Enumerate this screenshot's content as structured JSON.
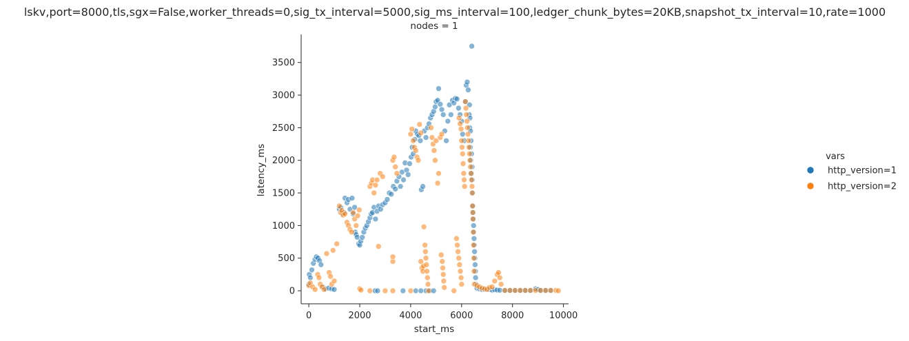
{
  "chart_data": {
    "type": "scatter",
    "title": "lskv,port=8000,tls,sgx=False,worker_threads=0,sig_tx_interval=5000,sig_ms_interval=100,ledger_chunk_bytes=20KB,snapshot_tx_interval=10,rate=1000",
    "subtitle": "nodes = 1",
    "xlabel": "start_ms",
    "ylabel": "latency_ms",
    "xlim": [
      -300,
      10200
    ],
    "ylim": [
      -200,
      3930
    ],
    "xticks": [
      0,
      2000,
      4000,
      6000,
      8000,
      10000
    ],
    "yticks": [
      0,
      500,
      1000,
      1500,
      2000,
      2500,
      3000,
      3500
    ],
    "grid": false,
    "legend": {
      "title": "vars",
      "placement": "right"
    },
    "series": [
      {
        "name": "http_version=1",
        "color": "#1f77b4",
        "points": [
          [
            0,
            100
          ],
          [
            20,
            250
          ],
          [
            60,
            200
          ],
          [
            120,
            320
          ],
          [
            180,
            420
          ],
          [
            240,
            480
          ],
          [
            300,
            520
          ],
          [
            360,
            500
          ],
          [
            420,
            460
          ],
          [
            480,
            400
          ],
          [
            550,
            60
          ],
          [
            650,
            30
          ],
          [
            780,
            40
          ],
          [
            900,
            30
          ],
          [
            1000,
            20
          ],
          [
            1200,
            1250
          ],
          [
            1260,
            1280
          ],
          [
            1320,
            1180
          ],
          [
            1380,
            1200
          ],
          [
            1420,
            1420
          ],
          [
            1500,
            1350
          ],
          [
            1560,
            1400
          ],
          [
            1620,
            1250
          ],
          [
            1700,
            1420
          ],
          [
            1740,
            1180
          ],
          [
            1800,
            1280
          ],
          [
            1820,
            900
          ],
          [
            1860,
            860
          ],
          [
            1900,
            820
          ],
          [
            1960,
            720
          ],
          [
            2000,
            700
          ],
          [
            2040,
            760
          ],
          [
            2100,
            820
          ],
          [
            2160,
            900
          ],
          [
            2220,
            960
          ],
          [
            2280,
            1000
          ],
          [
            2340,
            1060
          ],
          [
            2400,
            1120
          ],
          [
            2450,
            1180
          ],
          [
            2500,
            1200
          ],
          [
            2560,
            1280
          ],
          [
            2620,
            1100
          ],
          [
            2680,
            1220
          ],
          [
            2740,
            1300
          ],
          [
            2820,
            1250
          ],
          [
            2900,
            1320
          ],
          [
            3000,
            1350
          ],
          [
            3080,
            1400
          ],
          [
            3160,
            1500
          ],
          [
            3240,
            1480
          ],
          [
            3320,
            1600
          ],
          [
            3400,
            1560
          ],
          [
            3460,
            1680
          ],
          [
            3540,
            1750
          ],
          [
            3600,
            1600
          ],
          [
            3660,
            1820
          ],
          [
            3720,
            1700
          ],
          [
            3780,
            1960
          ],
          [
            3840,
            1850
          ],
          [
            3900,
            1780
          ],
          [
            3960,
            1950
          ],
          [
            4020,
            2050
          ],
          [
            4060,
            2200
          ],
          [
            4100,
            2100
          ],
          [
            4160,
            2320
          ],
          [
            4200,
            2450
          ],
          [
            4260,
            2400
          ],
          [
            4320,
            2380
          ],
          [
            4380,
            2300
          ],
          [
            4420,
            1550
          ],
          [
            4480,
            1600
          ],
          [
            4540,
            2450
          ],
          [
            4600,
            2350
          ],
          [
            4660,
            2500
          ],
          [
            4720,
            2560
          ],
          [
            4780,
            2650
          ],
          [
            4840,
            2700
          ],
          [
            4900,
            2750
          ],
          [
            4960,
            2820
          ],
          [
            5000,
            2900
          ],
          [
            5060,
            2920
          ],
          [
            5100,
            3100
          ],
          [
            5160,
            2860
          ],
          [
            5220,
            2780
          ],
          [
            5280,
            2700
          ],
          [
            5340,
            2450
          ],
          [
            5400,
            2300
          ],
          [
            5460,
            2600
          ],
          [
            5520,
            2850
          ],
          [
            5580,
            2700
          ],
          [
            5640,
            2920
          ],
          [
            5700,
            2880
          ],
          [
            5760,
            2950
          ],
          [
            5820,
            2940
          ],
          [
            5880,
            2800
          ],
          [
            5940,
            2700
          ],
          [
            6000,
            2600
          ],
          [
            6040,
            2400
          ],
          [
            6100,
            2300
          ],
          [
            6140,
            2900
          ],
          [
            6180,
            3150
          ],
          [
            6220,
            3200
          ],
          [
            6260,
            3080
          ],
          [
            6300,
            2700
          ],
          [
            6320,
            2500
          ],
          [
            6340,
            2200
          ],
          [
            6360,
            2000
          ],
          [
            6380,
            1800
          ],
          [
            6400,
            3750
          ],
          [
            6310,
            2850
          ],
          [
            6330,
            2650
          ],
          [
            6350,
            2450
          ],
          [
            6370,
            2300
          ],
          [
            6390,
            2100
          ],
          [
            6410,
            1900
          ],
          [
            6420,
            1700
          ],
          [
            6430,
            1500
          ],
          [
            6440,
            1300
          ],
          [
            6450,
            1200
          ],
          [
            6460,
            1100
          ],
          [
            6470,
            1000
          ],
          [
            6480,
            900
          ],
          [
            6490,
            800
          ],
          [
            6500,
            700
          ],
          [
            6510,
            600
          ],
          [
            6520,
            500
          ],
          [
            6530,
            400
          ],
          [
            6540,
            300
          ],
          [
            6550,
            200
          ],
          [
            6560,
            100
          ],
          [
            6600,
            40
          ],
          [
            6700,
            30
          ],
          [
            6800,
            20
          ],
          [
            6900,
            20
          ],
          [
            7000,
            30
          ],
          [
            7100,
            20
          ],
          [
            7200,
            10
          ],
          [
            7300,
            15
          ],
          [
            7400,
            10
          ],
          [
            7500,
            8
          ],
          [
            7700,
            5
          ],
          [
            7900,
            5
          ],
          [
            8100,
            5
          ],
          [
            8300,
            5
          ],
          [
            8500,
            5
          ],
          [
            8700,
            5
          ],
          [
            8900,
            30
          ],
          [
            9000,
            20
          ],
          [
            9100,
            5
          ],
          [
            9300,
            5
          ],
          [
            9500,
            5
          ],
          [
            2600,
            0
          ],
          [
            2700,
            0
          ],
          [
            3700,
            0
          ],
          [
            4200,
            0
          ],
          [
            4400,
            0
          ],
          [
            4600,
            0
          ],
          [
            4750,
            0
          ],
          [
            4900,
            0
          ]
        ]
      },
      {
        "name": "http_version=2",
        "color": "#ff7f0e",
        "points": [
          [
            0,
            80
          ],
          [
            60,
            120
          ],
          [
            150,
            60
          ],
          [
            250,
            20
          ],
          [
            350,
            250
          ],
          [
            400,
            200
          ],
          [
            450,
            100
          ],
          [
            520,
            60
          ],
          [
            600,
            20
          ],
          [
            700,
            570
          ],
          [
            800,
            280
          ],
          [
            850,
            220
          ],
          [
            900,
            100
          ],
          [
            950,
            620
          ],
          [
            1000,
            150
          ],
          [
            1100,
            720
          ],
          [
            1200,
            1300
          ],
          [
            1250,
            1200
          ],
          [
            1300,
            1230
          ],
          [
            1350,
            1160
          ],
          [
            1420,
            1180
          ],
          [
            1500,
            1050
          ],
          [
            1560,
            1000
          ],
          [
            1620,
            940
          ],
          [
            1680,
            900
          ],
          [
            1740,
            1200
          ],
          [
            1800,
            1100
          ],
          [
            1860,
            1000
          ],
          [
            1920,
            1150
          ],
          [
            1980,
            1240
          ],
          [
            2000,
            30
          ],
          [
            2050,
            10
          ],
          [
            2400,
            1600
          ],
          [
            2460,
            1650
          ],
          [
            2500,
            1700
          ],
          [
            2560,
            1500
          ],
          [
            2620,
            1620
          ],
          [
            2680,
            1700
          ],
          [
            2740,
            680
          ],
          [
            2800,
            1800
          ],
          [
            2900,
            1750
          ],
          [
            3000,
            0
          ],
          [
            3300,
            2000
          ],
          [
            3350,
            2050
          ],
          [
            3400,
            1900
          ],
          [
            3460,
            1800
          ],
          [
            3300,
            450
          ],
          [
            3300,
            520
          ],
          [
            4000,
            2400
          ],
          [
            4050,
            2480
          ],
          [
            4100,
            2300
          ],
          [
            4150,
            2200
          ],
          [
            4200,
            2150
          ],
          [
            4250,
            2050
          ],
          [
            4300,
            2000
          ],
          [
            4350,
            2550
          ],
          [
            4400,
            2420
          ],
          [
            4400,
            450
          ],
          [
            4440,
            350
          ],
          [
            4480,
            300
          ],
          [
            4500,
            380
          ],
          [
            4520,
            980
          ],
          [
            4560,
            700
          ],
          [
            4580,
            600
          ],
          [
            4600,
            500
          ],
          [
            4620,
            400
          ],
          [
            4640,
            300
          ],
          [
            4660,
            200
          ],
          [
            4680,
            100
          ],
          [
            4700,
            0
          ],
          [
            4800,
            2500
          ],
          [
            4840,
            2350
          ],
          [
            4880,
            2250
          ],
          [
            4920,
            2150
          ],
          [
            4960,
            2000
          ],
          [
            5000,
            2300
          ],
          [
            5060,
            1650
          ],
          [
            5100,
            1800
          ],
          [
            5160,
            2350
          ],
          [
            5220,
            2400
          ],
          [
            5200,
            550
          ],
          [
            5240,
            450
          ],
          [
            5260,
            350
          ],
          [
            5280,
            250
          ],
          [
            5300,
            150
          ],
          [
            5320,
            50
          ],
          [
            5800,
            800
          ],
          [
            5830,
            700
          ],
          [
            5860,
            600
          ],
          [
            5890,
            500
          ],
          [
            5920,
            400
          ],
          [
            5950,
            300
          ],
          [
            5980,
            200
          ],
          [
            6000,
            100
          ],
          [
            5900,
            2650
          ],
          [
            5940,
            2560
          ],
          [
            5980,
            2480
          ],
          [
            6000,
            2300
          ],
          [
            6020,
            2200
          ],
          [
            6040,
            2100
          ],
          [
            6060,
            1950
          ],
          [
            6080,
            1800
          ],
          [
            6100,
            1700
          ],
          [
            6120,
            1600
          ],
          [
            6150,
            2900
          ],
          [
            6170,
            2800
          ],
          [
            6190,
            2700
          ],
          [
            6210,
            2600
          ],
          [
            6230,
            2500
          ],
          [
            6250,
            2400
          ],
          [
            6270,
            2300
          ],
          [
            6290,
            2200
          ],
          [
            6310,
            2100
          ],
          [
            6330,
            2000
          ],
          [
            6350,
            1900
          ],
          [
            6370,
            1800
          ],
          [
            6390,
            1700
          ],
          [
            6410,
            1600
          ],
          [
            6420,
            1500
          ],
          [
            6430,
            1300
          ],
          [
            6440,
            1200
          ],
          [
            6450,
            1100
          ],
          [
            6460,
            900
          ],
          [
            6470,
            700
          ],
          [
            6480,
            500
          ],
          [
            6490,
            300
          ],
          [
            6500,
            100
          ],
          [
            6600,
            80
          ],
          [
            6700,
            60
          ],
          [
            6800,
            40
          ],
          [
            6900,
            30
          ],
          [
            7000,
            20
          ],
          [
            7100,
            50
          ],
          [
            7200,
            60
          ],
          [
            7300,
            150
          ],
          [
            7400,
            250
          ],
          [
            7450,
            280
          ],
          [
            7500,
            200
          ],
          [
            7550,
            100
          ],
          [
            7700,
            5
          ],
          [
            7900,
            5
          ],
          [
            8100,
            5
          ],
          [
            8300,
            5
          ],
          [
            8500,
            5
          ],
          [
            8700,
            5
          ],
          [
            8900,
            5
          ],
          [
            9100,
            5
          ],
          [
            9300,
            5
          ],
          [
            9500,
            5
          ],
          [
            9700,
            5
          ],
          [
            9800,
            0
          ],
          [
            2400,
            0
          ],
          [
            3300,
            0
          ],
          [
            4000,
            0
          ],
          [
            5700,
            0
          ]
        ]
      }
    ]
  }
}
